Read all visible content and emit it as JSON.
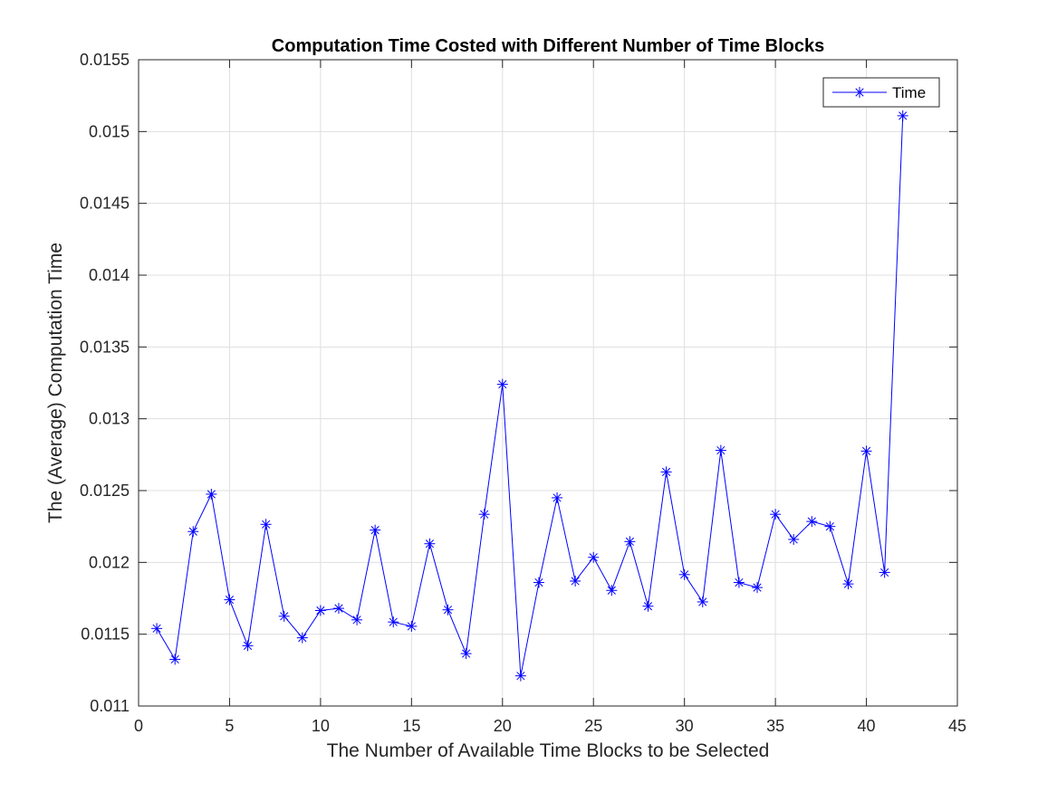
{
  "chart_data": {
    "type": "line",
    "title": "Computation Time Costed with Different Number of Time Blocks",
    "xlabel": "The Number of Available Time Blocks to be Selected",
    "ylabel": "The (Average) Computation Time",
    "xlim": [
      0,
      45
    ],
    "ylim": [
      0.011,
      0.0155
    ],
    "xticks": [
      0,
      5,
      10,
      15,
      20,
      25,
      30,
      35,
      40,
      45
    ],
    "yticks": [
      0.011,
      0.0115,
      0.012,
      0.0125,
      0.013,
      0.0135,
      0.014,
      0.0145,
      0.015,
      0.0155
    ],
    "xtick_labels": [
      "0",
      "5",
      "10",
      "15",
      "20",
      "25",
      "30",
      "35",
      "40",
      "45"
    ],
    "ytick_labels": [
      "0.011",
      "0.0115",
      "0.012",
      "0.0125",
      "0.013",
      "0.0135",
      "0.014",
      "0.0145",
      "0.015",
      "0.0155"
    ],
    "grid": true,
    "legend_position": "top-right",
    "x": [
      1,
      2,
      3,
      4,
      5,
      6,
      7,
      8,
      9,
      10,
      11,
      12,
      13,
      14,
      15,
      16,
      17,
      18,
      19,
      20,
      21,
      22,
      23,
      24,
      25,
      26,
      27,
      28,
      29,
      30,
      31,
      32,
      33,
      34,
      35,
      36,
      37,
      38,
      39,
      40,
      41,
      42
    ],
    "series": [
      {
        "name": "Time",
        "color": "#0000FF",
        "marker": "asterisk",
        "values": [
          0.01154,
          0.011325,
          0.012215,
          0.012475,
          0.01174,
          0.01142,
          0.012265,
          0.011625,
          0.011475,
          0.011665,
          0.01168,
          0.0116,
          0.012225,
          0.011585,
          0.011555,
          0.01213,
          0.01167,
          0.011365,
          0.012335,
          0.01324,
          0.01121,
          0.01186,
          0.01245,
          0.01187,
          0.012035,
          0.011805,
          0.012145,
          0.011695,
          0.01263,
          0.011915,
          0.011725,
          0.01278,
          0.01186,
          0.011825,
          0.012335,
          0.01216,
          0.012285,
          0.01225,
          0.01185,
          0.012775,
          0.01193,
          0.01511
        ]
      }
    ]
  }
}
